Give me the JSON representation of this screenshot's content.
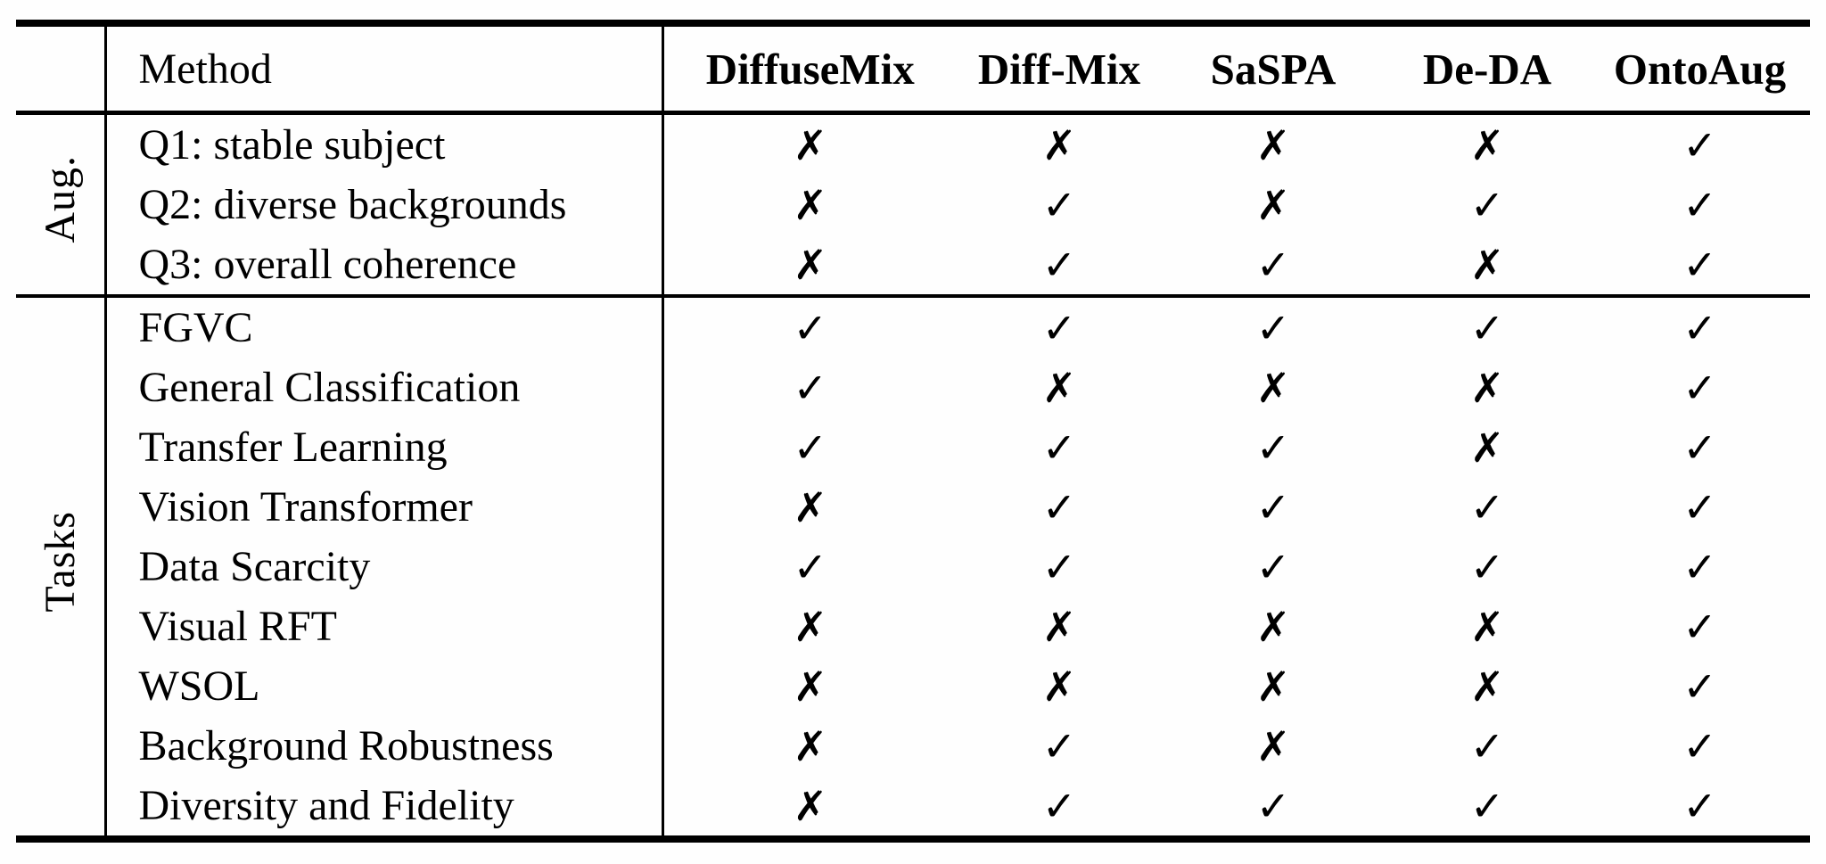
{
  "page": {
    "background": "#ffffff",
    "text_color": "#000000",
    "rule_color": "#000000"
  },
  "table": {
    "header": {
      "method_label": "Method",
      "columns": [
        "DiffuseMix",
        "Diff-Mix",
        "SaSPA",
        "De-DA",
        "OntoAug"
      ]
    },
    "glyphs": {
      "check": "✓",
      "x": "✗"
    },
    "sections": [
      {
        "label": "Aug.",
        "rows": [
          {
            "label": "Q1: stable subject",
            "marks": [
              "x",
              "x",
              "x",
              "x",
              "check"
            ]
          },
          {
            "label": "Q2: diverse backgrounds",
            "marks": [
              "x",
              "check",
              "x",
              "check",
              "check"
            ]
          },
          {
            "label": "Q3: overall coherence",
            "marks": [
              "x",
              "check",
              "check",
              "x",
              "check"
            ]
          }
        ]
      },
      {
        "label": "Tasks",
        "rows": [
          {
            "label": "FGVC",
            "marks": [
              "check",
              "check",
              "check",
              "check",
              "check"
            ]
          },
          {
            "label": "General Classification",
            "marks": [
              "check",
              "x",
              "x",
              "x",
              "check"
            ]
          },
          {
            "label": "Transfer Learning",
            "marks": [
              "check",
              "check",
              "check",
              "x",
              "check"
            ]
          },
          {
            "label": "Vision Transformer",
            "marks": [
              "x",
              "check",
              "check",
              "check",
              "check"
            ]
          },
          {
            "label": "Data Scarcity",
            "marks": [
              "check",
              "check",
              "check",
              "check",
              "check"
            ]
          },
          {
            "label": "Visual RFT",
            "marks": [
              "x",
              "x",
              "x",
              "x",
              "check"
            ]
          },
          {
            "label": "WSOL",
            "marks": [
              "x",
              "x",
              "x",
              "x",
              "check"
            ]
          },
          {
            "label": "Background Robustness",
            "marks": [
              "x",
              "check",
              "x",
              "check",
              "check"
            ]
          },
          {
            "label": "Diversity and Fidelity",
            "marks": [
              "x",
              "check",
              "check",
              "check",
              "check"
            ]
          }
        ]
      }
    ]
  }
}
